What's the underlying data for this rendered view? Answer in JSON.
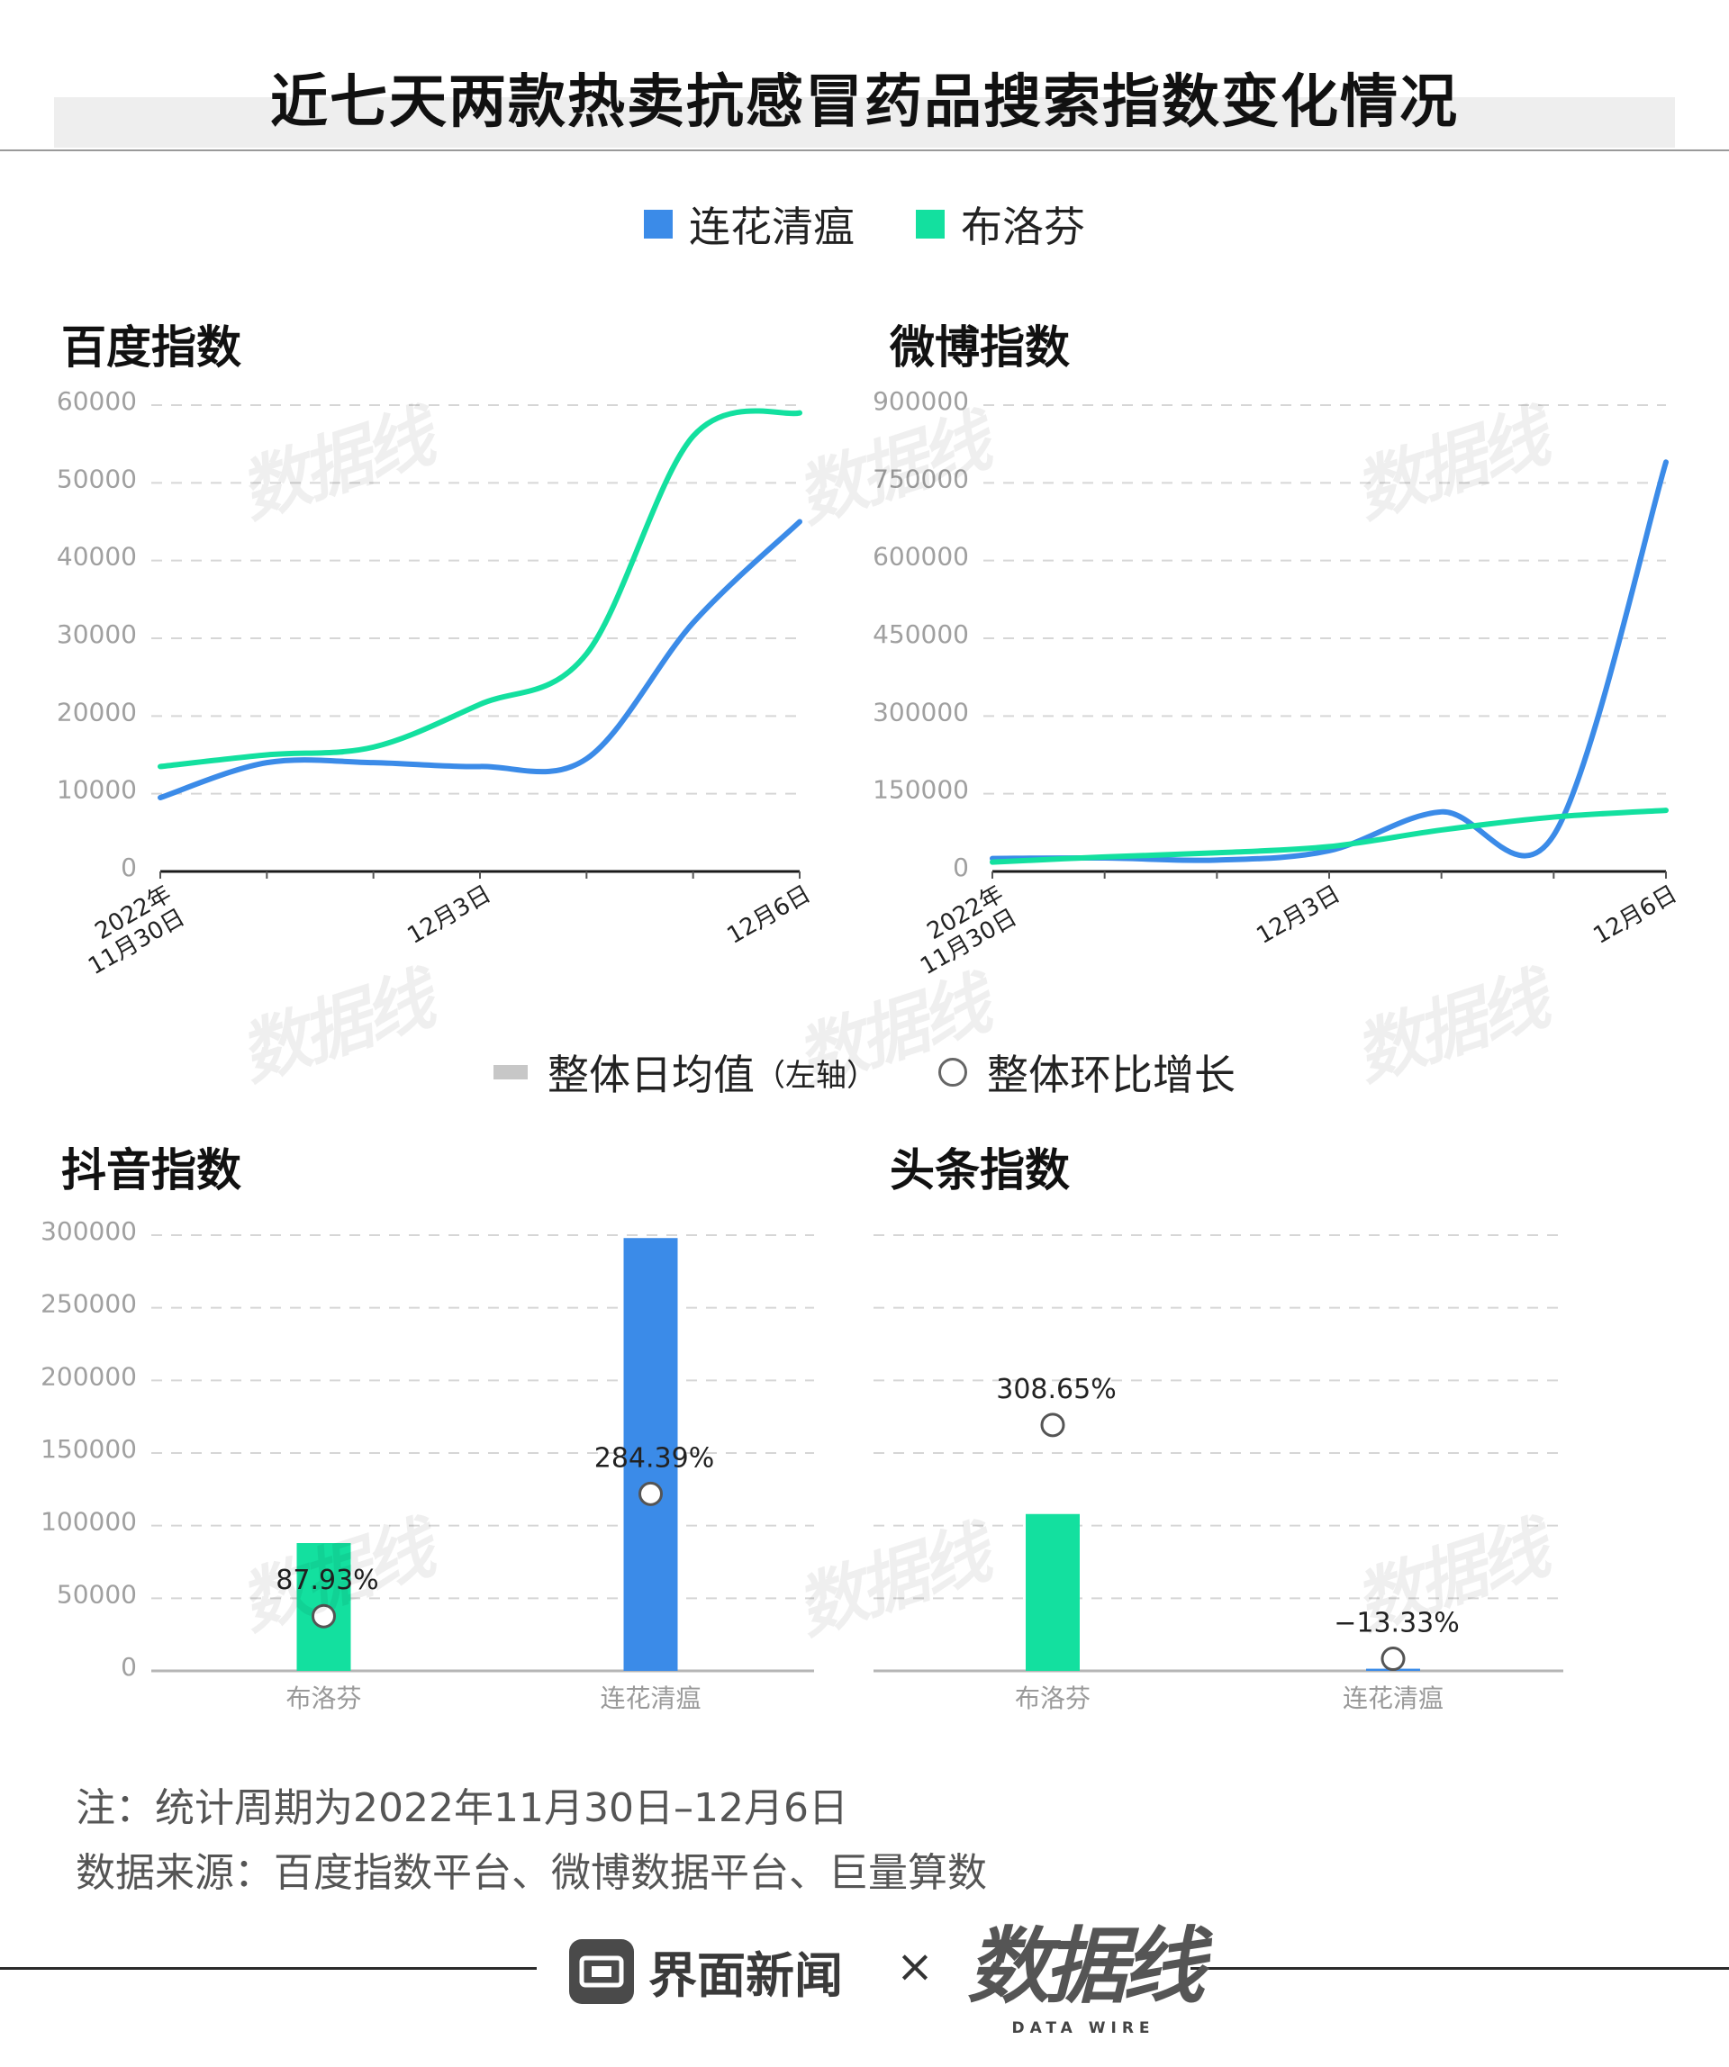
{
  "title": "近七天两款热卖抗感冒药品搜索指数变化情况",
  "top_legend": [
    {
      "label": "连花清瘟",
      "color": "#3B8BE8"
    },
    {
      "label": "布洛芬",
      "color": "#13E09F"
    }
  ],
  "bar_legend": {
    "bar_label": "整体日均值",
    "bar_note": "（左轴）",
    "bar_color": "#C7C7C7",
    "point_label": "整体环比增长"
  },
  "chart_data": [
    {
      "type": "line",
      "title": "百度指数",
      "x": [
        "2022-11-30",
        "2022-12-01",
        "2022-12-02",
        "2022-12-03",
        "2022-12-04",
        "2022-12-05",
        "2022-12-06"
      ],
      "x_tick_labels": [
        "2022年\n11月30日",
        "12月3日",
        "12月6日"
      ],
      "y_ticks": [
        0,
        10000,
        20000,
        30000,
        40000,
        50000,
        60000
      ],
      "ylim": [
        0,
        60000
      ],
      "grid": true,
      "series": [
        {
          "name": "连花清瘟",
          "color": "#3B8BE8",
          "values": [
            9500,
            14000,
            14000,
            13500,
            14500,
            32000,
            45000
          ]
        },
        {
          "name": "布洛芬",
          "color": "#13E09F",
          "values": [
            13500,
            15000,
            16000,
            21500,
            28000,
            56000,
            59000
          ]
        }
      ]
    },
    {
      "type": "line",
      "title": "微博指数",
      "x": [
        "2022-11-30",
        "2022-12-01",
        "2022-12-02",
        "2022-12-03",
        "2022-12-04",
        "2022-12-05",
        "2022-12-06"
      ],
      "x_tick_labels": [
        "2022年\n11月30日",
        "12月3日",
        "12月6日"
      ],
      "y_ticks": [
        0,
        150000,
        300000,
        450000,
        600000,
        750000,
        900000
      ],
      "ylim": [
        0,
        900000
      ],
      "grid": true,
      "series": [
        {
          "name": "连花清瘟",
          "color": "#3B8BE8",
          "values": [
            25000,
            26000,
            22000,
            40000,
            115000,
            70000,
            790000
          ]
        },
        {
          "name": "布洛芬",
          "color": "#13E09F",
          "values": [
            18000,
            28000,
            36000,
            48000,
            80000,
            105000,
            118000
          ]
        }
      ]
    },
    {
      "type": "bar",
      "title": "抖音指数",
      "categories": [
        "布洛芬",
        "连花清瘟"
      ],
      "values": [
        88000,
        298000
      ],
      "colors": [
        "#13E09F",
        "#3B8BE8"
      ],
      "y_ticks": [
        0,
        50000,
        100000,
        150000,
        200000,
        250000,
        300000
      ],
      "ylim": [
        0,
        300000
      ],
      "growth": [
        {
          "label": "87.93%",
          "value": 87.93
        },
        {
          "label": "284.39%",
          "value": 284.39
        }
      ],
      "growth_ylim": [
        0,
        700
      ],
      "grid": true
    },
    {
      "type": "bar",
      "title": "头条指数",
      "categories": [
        "布洛芬",
        "连花清瘟"
      ],
      "values": [
        108000,
        1500
      ],
      "colors": [
        "#13E09F",
        "#3B8BE8"
      ],
      "ylim": [
        0,
        300000
      ],
      "growth": [
        {
          "label": "308.65%",
          "value": 308.65
        },
        {
          "label": "−13.33%",
          "value": -13.33
        }
      ],
      "growth_ylim": [
        -30,
        570
      ],
      "grid": true
    }
  ],
  "notes": {
    "period": "注：统计周期为2022年11月30日–12月6日",
    "source": "数据来源：百度指数平台、微博数据平台、巨量算数"
  },
  "footer": {
    "jiemian": "界面新闻",
    "times": "×",
    "datawire": "数据线",
    "datawire_en": "DATA WIRE"
  },
  "watermark": {
    "text": "数据线",
    "sub": "DATA WIRE"
  }
}
